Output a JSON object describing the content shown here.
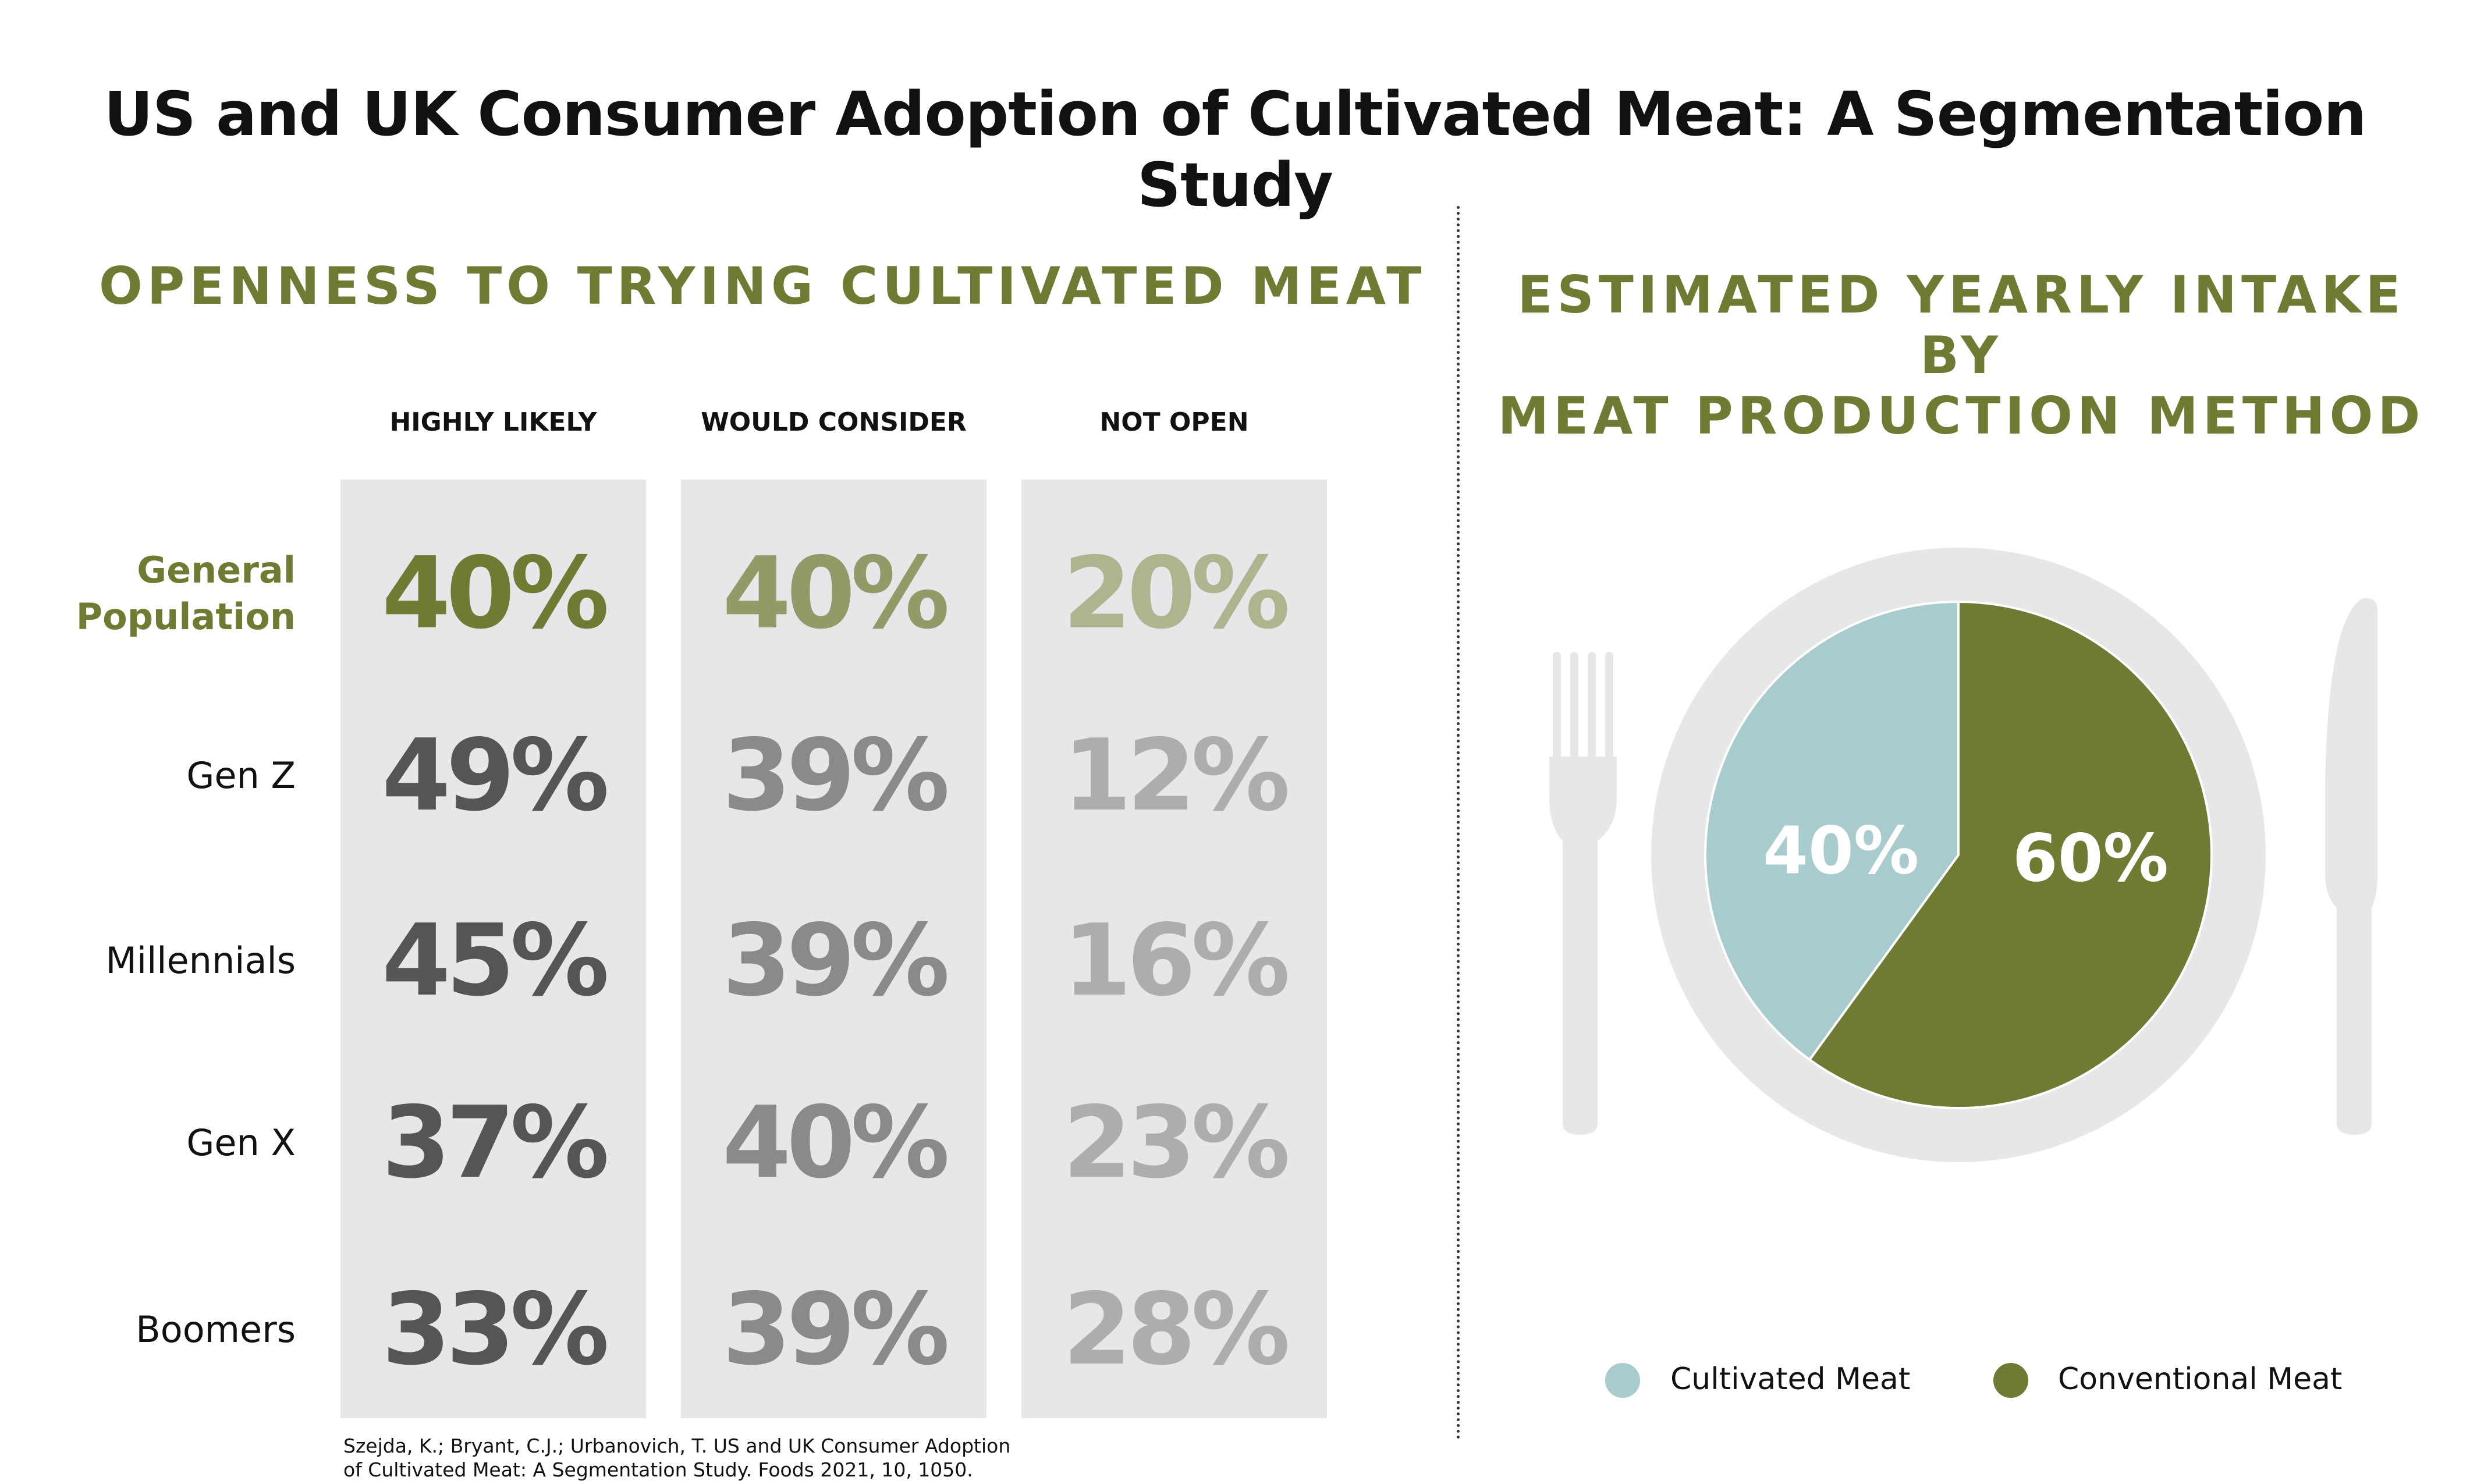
{
  "title": "US and UK Consumer Adoption of Cultivated Meat: A Segmentation Study",
  "citation": {
    "line1": "Szejda, K.; Bryant, C.J.; Urbanovich, T. US and UK Consumer Adoption",
    "line2": "of Cultivated Meat: A Segmentation Study. Foods 2021, 10, 1050."
  },
  "colors": {
    "olive": "#6f7a33",
    "olive_mid": "#939a68",
    "olive_light": "#adb48e",
    "cultivated": "#a8cccd",
    "plate": "#e6e7e8"
  },
  "chart_data": [
    {
      "type": "table",
      "title": "OPENNESS TO TRYING CULTIVATED MEAT",
      "columns": [
        "HIGHLY LIKELY",
        "WOULD CONSIDER",
        "NOT OPEN"
      ],
      "rows": [
        {
          "label": [
            "General",
            "Population"
          ],
          "values": [
            "40%",
            "40%",
            "20%"
          ]
        },
        {
          "label": [
            "Gen Z"
          ],
          "values": [
            "49%",
            "39%",
            "12%"
          ]
        },
        {
          "label": [
            "Millennials"
          ],
          "values": [
            "45%",
            "39%",
            "16%"
          ]
        },
        {
          "label": [
            "Gen X"
          ],
          "values": [
            "37%",
            "40%",
            "23%"
          ]
        },
        {
          "label": [
            "Boomers"
          ],
          "values": [
            "33%",
            "39%",
            "28%"
          ]
        }
      ]
    },
    {
      "type": "pie",
      "title": [
        "ESTIMATED YEARLY INTAKE BY",
        "MEAT PRODUCTION METHOD"
      ],
      "slices": [
        {
          "name": "Cultivated Meat",
          "value": 40,
          "label": "40%",
          "color": "#a8cccd"
        },
        {
          "name": "Conventional Meat",
          "value": 60,
          "label": "60%",
          "color": "#6f7a33"
        }
      ],
      "legend_position": "bottom"
    }
  ]
}
